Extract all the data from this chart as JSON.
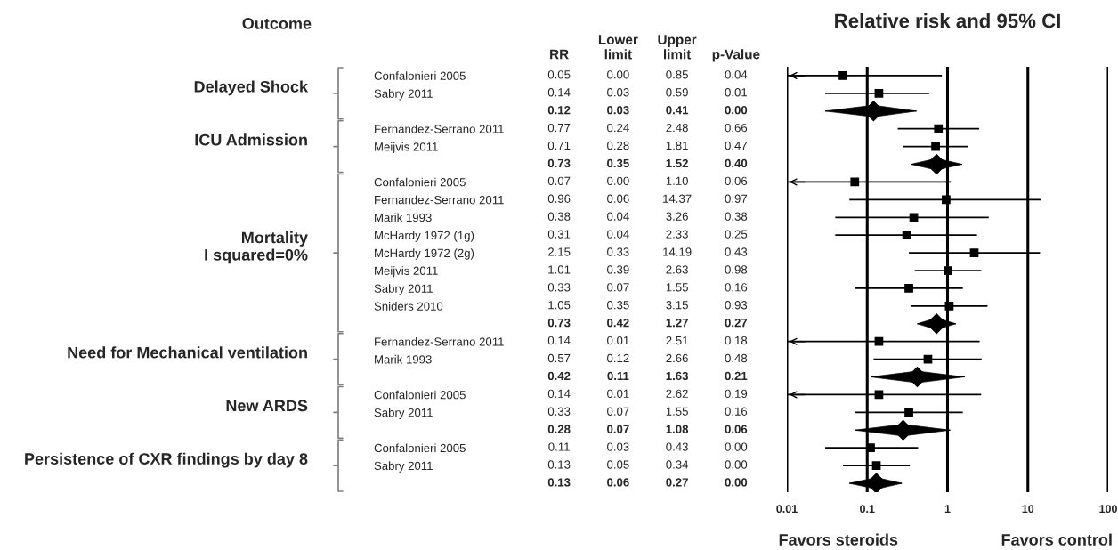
{
  "chart_data": [
    {
      "type": "heatmap",
      "title": "Outcome",
      "categories": [
        "RR",
        "Lower\nlimit",
        "Upper\nlimit",
        "p-Value"
      ],
      "y_categories": [
        "Confalonieri 2005",
        "Sabry 2011",
        null,
        "Fernandez-Serrano 2011",
        "Meijvis 2011",
        null,
        "Confalonieri 2005",
        "Fernandez-Serrano 2011",
        "Marik 1993",
        "McHardy 1972 (1g)",
        "McHardy 1972 (2g)",
        "Meijvis 2011",
        "Sabry 2011",
        "Sniders 2010",
        null,
        "Fernandez-Serrano 2011",
        "Marik 1993",
        null,
        "Confalonieri 2005",
        "Sabry 2011",
        null,
        "Confalonieri 2005",
        "Sabry 2011",
        null
      ],
      "cells": [
        [
          0.05,
          0.0,
          0.85,
          0.04
        ],
        [
          0.14,
          0.03,
          0.59,
          0.01
        ],
        [
          0.12,
          0.03,
          0.41,
          0.0
        ],
        [
          0.77,
          0.24,
          2.48,
          0.66
        ],
        [
          0.71,
          0.28,
          1.81,
          0.47
        ],
        [
          0.73,
          0.35,
          1.52,
          0.4
        ],
        [
          0.07,
          0.0,
          1.1,
          0.06
        ],
        [
          0.96,
          0.06,
          14.37,
          0.97
        ],
        [
          0.38,
          0.04,
          3.26,
          0.38
        ],
        [
          0.31,
          0.04,
          2.33,
          0.25
        ],
        [
          2.15,
          0.33,
          14.19,
          0.43
        ],
        [
          1.01,
          0.39,
          2.63,
          0.98
        ],
        [
          0.33,
          0.07,
          1.55,
          0.16
        ],
        [
          1.05,
          0.35,
          3.15,
          0.93
        ],
        [
          0.73,
          0.42,
          1.27,
          0.27
        ],
        [
          0.14,
          0.01,
          2.51,
          0.18
        ],
        [
          0.57,
          0.12,
          2.66,
          0.48
        ],
        [
          0.42,
          0.11,
          1.63,
          0.21
        ],
        [
          0.14,
          0.01,
          2.62,
          0.19
        ],
        [
          0.33,
          0.07,
          1.55,
          0.16
        ],
        [
          0.28,
          0.07,
          1.08,
          0.06
        ],
        [
          0.11,
          0.03,
          0.43,
          0.0
        ],
        [
          0.13,
          0.05,
          0.34,
          0.0
        ],
        [
          0.13,
          0.06,
          0.27,
          0.0
        ]
      ],
      "cell_labels": [
        [
          "0.05",
          "0.00",
          "0.85",
          "0.04"
        ],
        [
          "0.14",
          "0.03",
          "0.59",
          "0.01"
        ],
        [
          "0.12",
          "0.03",
          "0.41",
          "0.00"
        ],
        [
          "0.77",
          "0.24",
          "2.48",
          "0.66"
        ],
        [
          "0.71",
          "0.28",
          "1.81",
          "0.47"
        ],
        [
          "0.73",
          "0.35",
          "1.52",
          "0.40"
        ],
        [
          "0.07",
          "0.00",
          "1.10",
          "0.06"
        ],
        [
          "0.96",
          "0.06",
          "14.37",
          "0.97"
        ],
        [
          "0.38",
          "0.04",
          "3.26",
          "0.38"
        ],
        [
          "0.31",
          "0.04",
          "2.33",
          "0.25"
        ],
        [
          "2.15",
          "0.33",
          "14.19",
          "0.43"
        ],
        [
          "1.01",
          "0.39",
          "2.63",
          "0.98"
        ],
        [
          "0.33",
          "0.07",
          "1.55",
          "0.16"
        ],
        [
          "1.05",
          "0.35",
          "3.15",
          "0.93"
        ],
        [
          "0.73",
          "0.42",
          "1.27",
          "0.27"
        ],
        [
          "0.14",
          "0.01",
          "2.51",
          "0.18"
        ],
        [
          "0.57",
          "0.12",
          "2.66",
          "0.48"
        ],
        [
          "0.42",
          "0.11",
          "1.63",
          "0.21"
        ],
        [
          "0.14",
          "0.01",
          "2.62",
          "0.19"
        ],
        [
          "0.33",
          "0.07",
          "1.55",
          "0.16"
        ],
        [
          "0.28",
          "0.07",
          "1.08",
          "0.06"
        ],
        [
          "0.11",
          "0.03",
          "0.43",
          "0.00"
        ],
        [
          "0.13",
          "0.05",
          "0.34",
          "0.00"
        ],
        [
          "0.13",
          "0.06",
          "0.27",
          "0.00"
        ]
      ],
      "annotations": [
        "Delayed Shock",
        "ICU Admission",
        "Mortality\nI squared=0%",
        "Need for Mechanical ventilation",
        "New ARDS",
        "Persistence of CXR findings by day 8"
      ]
    },
    {
      "type": "scatter",
      "orientation": "horizontal",
      "title": "Relative risk and 95% CI",
      "categories": [
        null,
        null,
        null,
        null,
        null,
        null,
        null,
        null,
        null,
        null,
        null,
        null,
        null,
        null,
        null,
        null,
        null,
        null,
        null,
        null,
        null,
        null,
        null,
        null
      ],
      "series": [
        {
          "marker": "square",
          "color": "#000000",
          "values": [
            0.05,
            0.14,
            null,
            0.77,
            0.71,
            null,
            0.07,
            0.96,
            0.38,
            0.31,
            2.15,
            1.01,
            0.33,
            1.05,
            null,
            0.14,
            0.57,
            null,
            0.14,
            0.33,
            null,
            0.11,
            0.13,
            null
          ],
          "errors": [
            [
              0.01,
              0.85
            ],
            [
              0.03,
              0.59
            ],
            null,
            [
              0.24,
              2.48
            ],
            [
              0.28,
              1.81
            ],
            null,
            [
              0.01,
              1.1
            ],
            [
              0.06,
              14.37
            ],
            [
              0.04,
              3.26
            ],
            [
              0.04,
              2.33
            ],
            [
              0.33,
              14.19
            ],
            [
              0.39,
              2.63
            ],
            [
              0.07,
              1.55
            ],
            [
              0.35,
              3.15
            ],
            null,
            [
              0.01,
              2.51
            ],
            [
              0.12,
              2.66
            ],
            null,
            [
              0.01,
              2.62
            ],
            [
              0.07,
              1.55
            ],
            null,
            [
              0.03,
              0.43
            ],
            [
              0.05,
              0.34
            ],
            null
          ]
        },
        {
          "marker": "diamond",
          "color": "#000000",
          "values": [
            null,
            null,
            0.12,
            null,
            null,
            0.73,
            null,
            null,
            null,
            null,
            null,
            null,
            null,
            null,
            0.73,
            null,
            null,
            0.42,
            null,
            null,
            0.28,
            null,
            null,
            0.13
          ],
          "errors": [
            null,
            null,
            [
              0.03,
              0.41
            ],
            null,
            null,
            [
              0.35,
              1.52
            ],
            null,
            null,
            null,
            null,
            null,
            null,
            null,
            null,
            [
              0.42,
              1.27
            ],
            null,
            null,
            [
              0.11,
              1.63
            ],
            null,
            null,
            [
              0.07,
              1.08
            ],
            null,
            null,
            [
              0.06,
              0.27
            ]
          ]
        }
      ],
      "xlim": [
        0.01,
        100
      ],
      "xticks": [
        0.01,
        0.1,
        1,
        10,
        100
      ],
      "log": "x",
      "grid": "x",
      "tick_labels": "x",
      "annotations": [
        "Favors steroids",
        "Favors control"
      ]
    }
  ]
}
